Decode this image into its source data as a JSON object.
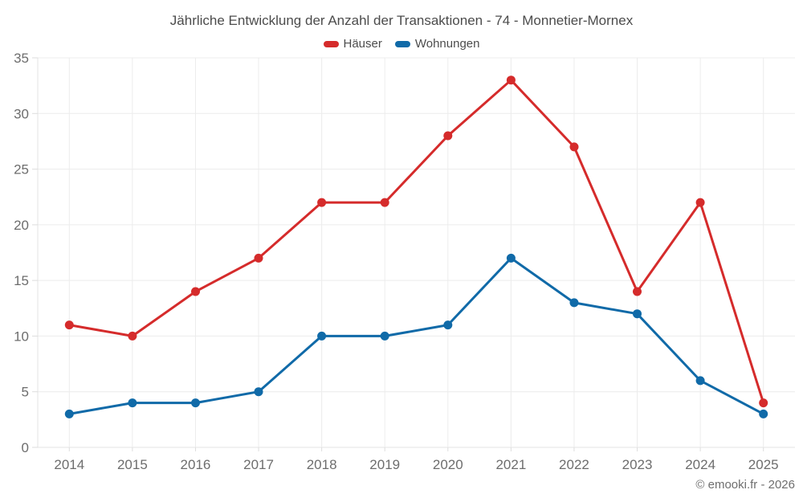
{
  "title": "Jährliche Entwicklung der Anzahl der Transaktionen - 74 - Monnetier-Mornex",
  "footer": "© emooki.fr - 2026",
  "colors": {
    "hauser": "#d52b2b",
    "wohnungen": "#106aa8",
    "grid": "#ececec",
    "axis_line": "#e3e3e3",
    "tick": "#dddddd",
    "axis_text": "#6d6d6d"
  },
  "chart_data": {
    "type": "line",
    "title": "Jährliche Entwicklung der Anzahl der Transaktionen - 74 - Monnetier-Mornex",
    "categories": [
      "2014",
      "2015",
      "2016",
      "2017",
      "2018",
      "2019",
      "2020",
      "2021",
      "2022",
      "2023",
      "2024",
      "2025"
    ],
    "series": [
      {
        "name": "Häuser",
        "color": "#d52b2b",
        "values": [
          11,
          10,
          14,
          17,
          22,
          22,
          28,
          33,
          27,
          14,
          22,
          4
        ]
      },
      {
        "name": "Wohnungen",
        "color": "#106aa8",
        "values": [
          3,
          4,
          4,
          5,
          10,
          10,
          11,
          17,
          13,
          12,
          6,
          3
        ]
      }
    ],
    "xlabel": "",
    "ylabel": "",
    "ylim": [
      0,
      35
    ],
    "yticks": [
      0,
      5,
      10,
      15,
      20,
      25,
      30,
      35
    ],
    "grid": true,
    "legend_position": "top",
    "marker": "circle"
  }
}
